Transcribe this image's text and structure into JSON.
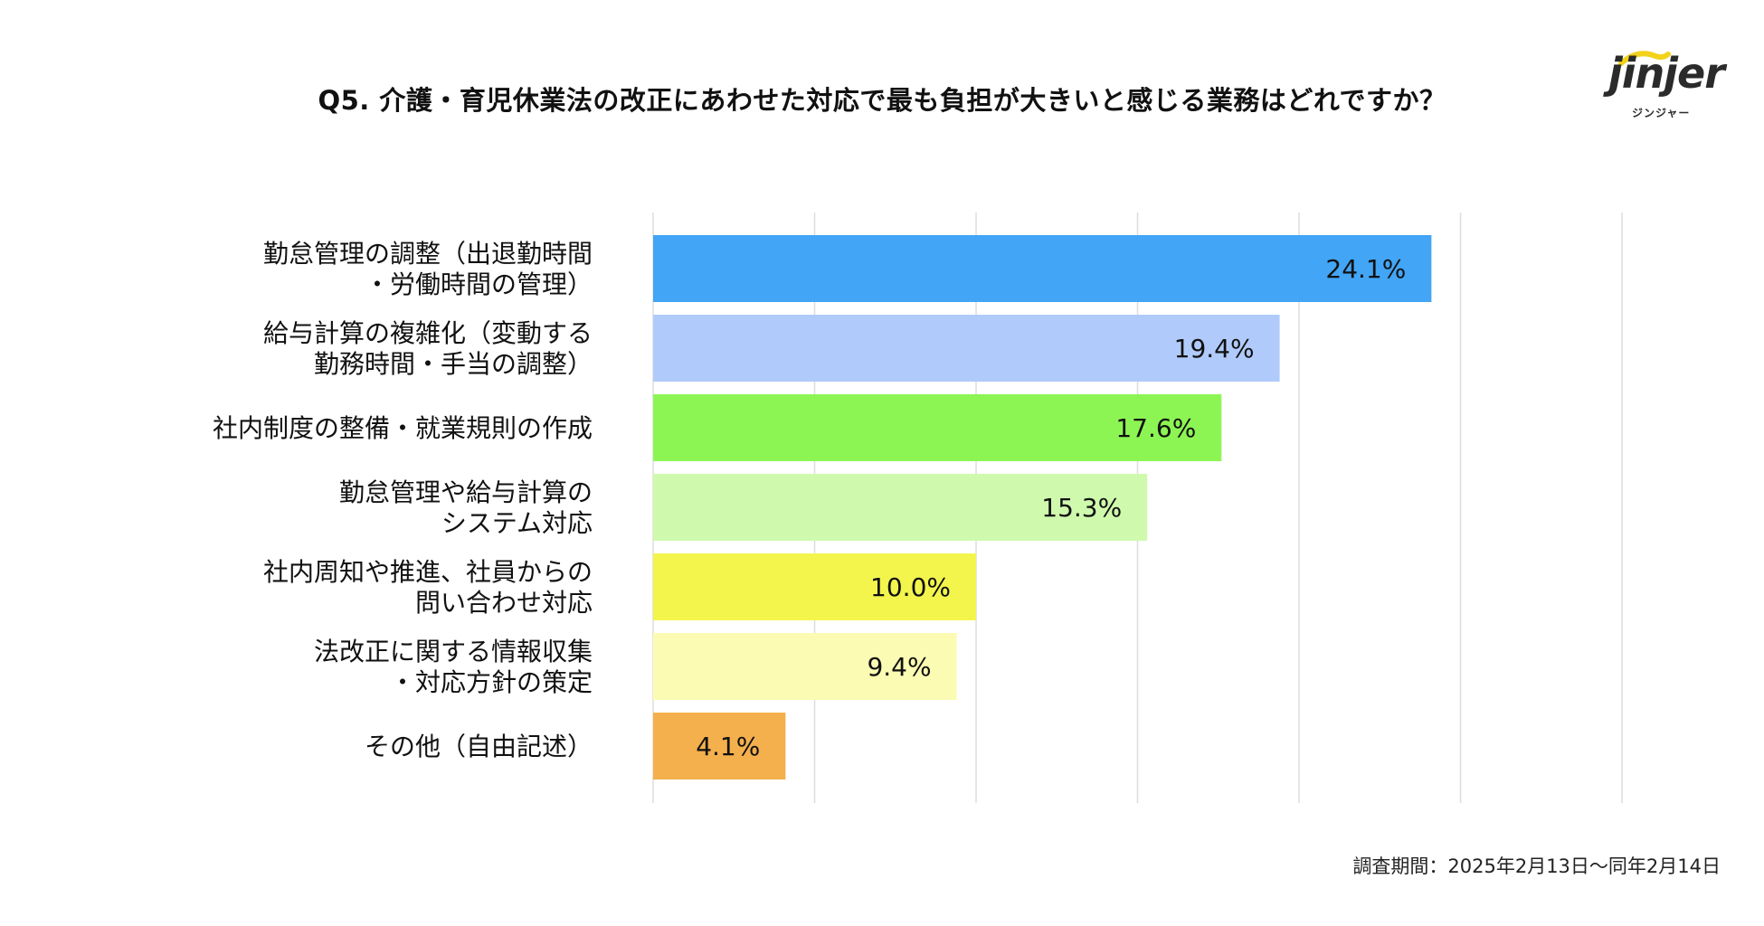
{
  "title": "Q5. 介護・育児休業法の改正にあわせた対応で最も負担が大きいと感じる業務はどれですか？",
  "logo": {
    "word": "jinjer",
    "kana": "ジンジャー",
    "accent_color": "#F3D21C"
  },
  "footer": "調査期間：2025年2月13日〜同年2月14日",
  "chart_data": {
    "type": "bar",
    "orientation": "horizontal",
    "categories": [
      [
        "勤怠管理の調整（出退勤時間",
        "・労働時間の管理）"
      ],
      [
        "給与計算の複雑化（変動する",
        "勤務時間・手当の調整）"
      ],
      [
        "社内制度の整備・就業規則の作成"
      ],
      [
        "勤怠管理や給与計算の",
        "システム対応"
      ],
      [
        "社内周知や推進、社員からの",
        "問い合わせ対応"
      ],
      [
        "法改正に関する情報収集",
        "・対応方針の策定"
      ],
      [
        "その他（自由記述）"
      ]
    ],
    "values": [
      24.1,
      19.4,
      17.6,
      15.3,
      10.0,
      9.4,
      4.1
    ],
    "value_labels": [
      "24.1%",
      "19.4%",
      "17.6%",
      "15.3%",
      "10.0%",
      "9.4%",
      "4.1%"
    ],
    "colors": [
      "#42A5F5",
      "#B0CBFB",
      "#8DF553",
      "#CFFAAE",
      "#F3F54D",
      "#FBFBB3",
      "#F4B04C"
    ],
    "xlim": [
      0,
      30
    ],
    "grid": true,
    "gridline_values": [
      0,
      5,
      10,
      15,
      20,
      25,
      30
    ],
    "legend": "none"
  }
}
